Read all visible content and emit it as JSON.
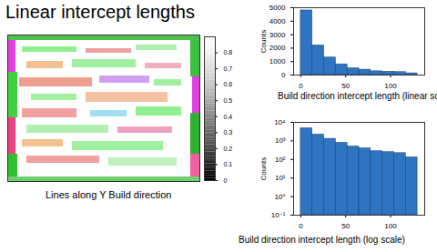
{
  "title": "Linear intercept lengths",
  "chart_data": [
    {
      "type": "map",
      "caption": "Lines along Y Build direction",
      "colorbar": {
        "range": [
          0,
          0.9
        ],
        "ticks": [
          0,
          0.1,
          0.2,
          0.3,
          0.4,
          0.5,
          0.6,
          0.7,
          0.8
        ]
      }
    },
    {
      "type": "histogram",
      "xlabel": "Build direction intercept length (linear scale)",
      "ylabel": "Counts",
      "bins": [
        0,
        13,
        26,
        39,
        52,
        65,
        78,
        91,
        104,
        117,
        130
      ],
      "values": [
        4800,
        2200,
        1300,
        800,
        500,
        400,
        280,
        250,
        220,
        130
      ],
      "color": "#2f74c0",
      "xlim": [
        -8,
        138
      ],
      "xticks": [
        0,
        50,
        100
      ],
      "ylim": [
        0,
        5000
      ],
      "yticks": [
        0,
        1000,
        2000,
        3000,
        4000,
        5000
      ]
    },
    {
      "type": "histogram",
      "xlabel": "Build direction intercept length (log scale)",
      "ylabel": "Counts",
      "bins": [
        0,
        13,
        26,
        39,
        52,
        65,
        78,
        91,
        104,
        117,
        130
      ],
      "values": [
        4800,
        2200,
        1300,
        800,
        500,
        400,
        280,
        250,
        220,
        130
      ],
      "color": "#2f74c0",
      "log": "y",
      "xlim": [
        -8,
        138
      ],
      "xticks": [
        0,
        50,
        100
      ],
      "ylim": [
        0.1,
        10000
      ],
      "yticks": [
        {
          "value": 0.1,
          "label": "10⁻¹"
        },
        {
          "value": 1,
          "label": "10⁰"
        },
        {
          "value": 10,
          "label": "10¹"
        },
        {
          "value": 100,
          "label": "10²"
        },
        {
          "value": 1000,
          "label": "10³"
        },
        {
          "value": 10000,
          "label": "10⁴"
        }
      ]
    }
  ]
}
